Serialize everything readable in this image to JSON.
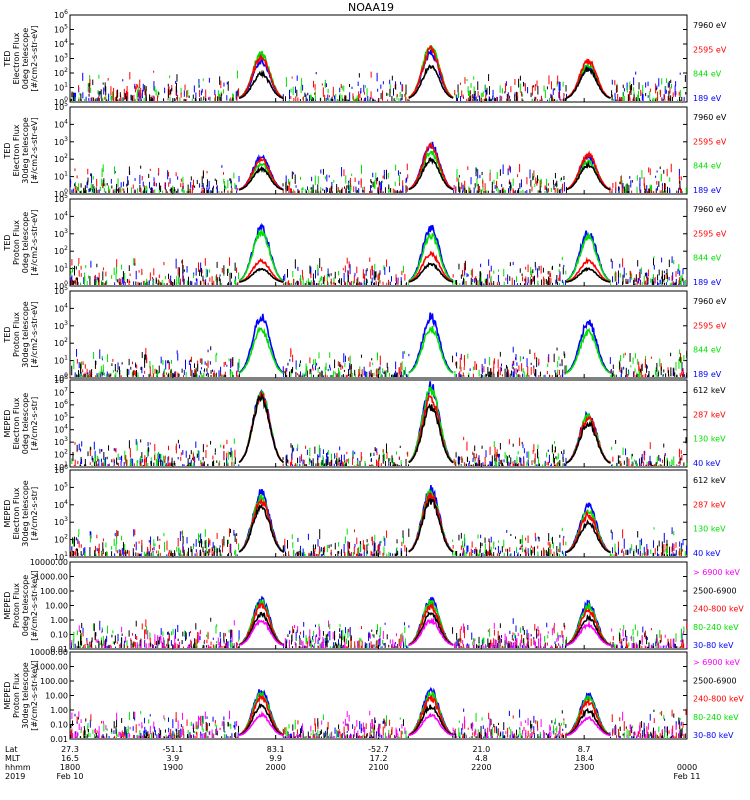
{
  "title": "NOAA19",
  "colors": {
    "black": "#000000",
    "red": "#ff0000",
    "green": "#00e000",
    "blue": "#0000ff",
    "magenta": "#ff00ff"
  },
  "chart_data": [
    {
      "type": "scatter",
      "ylabel": [
        "TED",
        "Electron Flux",
        "0deg telescope",
        "[#/cm2-s-str-eV]"
      ],
      "yscale": "log",
      "ylim": [
        1,
        1000000
      ],
      "yticks": [
        "10^0",
        "10^1",
        "10^2",
        "10^3",
        "10^4",
        "10^5",
        "10^6"
      ],
      "legend": [
        {
          "name": "7960 eV",
          "color": "black"
        },
        {
          "name": "2595 eV",
          "color": "red"
        },
        {
          "name": "844 eV",
          "color": "green"
        },
        {
          "name": "189 eV",
          "color": "blue"
        }
      ],
      "passes": [
        {
          "center": 0.31,
          "peak": [
            100,
            1500,
            2500,
            800
          ]
        },
        {
          "center": 0.585,
          "peak": [
            300,
            5000,
            10000,
            3000
          ]
        },
        {
          "center": 0.84,
          "peak": [
            200,
            800,
            400,
            250
          ]
        }
      ]
    },
    {
      "type": "scatter",
      "ylabel": [
        "TED",
        "Electron Flux",
        "30deg telescope",
        "[#/cm2-s-str-eV]"
      ],
      "yscale": "log",
      "ylim": [
        1,
        100000
      ],
      "yticks": [
        "10^0",
        "10^1",
        "10^2",
        "10^3",
        "10^4",
        "10^5"
      ],
      "legend": [
        {
          "name": "7960 eV",
          "color": "black"
        },
        {
          "name": "2595 eV",
          "color": "red"
        },
        {
          "name": "844 eV",
          "color": "green"
        },
        {
          "name": "189 eV",
          "color": "blue"
        }
      ],
      "passes": [
        {
          "center": 0.31,
          "peak": [
            30,
            100,
            60,
            150
          ]
        },
        {
          "center": 0.585,
          "peak": [
            100,
            600,
            300,
            800
          ]
        },
        {
          "center": 0.84,
          "peak": [
            50,
            200,
            80,
            150
          ]
        }
      ]
    },
    {
      "type": "scatter",
      "ylabel": [
        "TED",
        "Proton Flux",
        "0deg telescope",
        "[#/cm2-s-str-eV]"
      ],
      "yscale": "log",
      "ylim": [
        1,
        100000
      ],
      "yticks": [
        "10^0",
        "10^1",
        "10^2",
        "10^3",
        "10^4",
        "10^5"
      ],
      "legend": [
        {
          "name": "7960 eV",
          "color": "black"
        },
        {
          "name": "2595 eV",
          "color": "red"
        },
        {
          "name": "844 eV",
          "color": "green"
        },
        {
          "name": "189 eV",
          "color": "blue"
        }
      ],
      "passes": [
        {
          "center": 0.31,
          "peak": [
            10,
            30,
            1500,
            2500
          ]
        },
        {
          "center": 0.585,
          "peak": [
            20,
            80,
            1000,
            2500
          ]
        },
        {
          "center": 0.84,
          "peak": [
            10,
            30,
            800,
            1500
          ]
        }
      ]
    },
    {
      "type": "scatter",
      "ylabel": [
        "TED",
        "Proton Flux",
        "30deg telescope",
        "[#/cm2-s-str-eV]"
      ],
      "yscale": "log",
      "ylim": [
        1,
        100000
      ],
      "yticks": [
        "10^0",
        "10^1",
        "10^2",
        "10^3",
        "10^4",
        "10^5"
      ],
      "legend": [
        {
          "name": "7960 eV",
          "color": "black"
        },
        {
          "name": "2595 eV",
          "color": "red"
        },
        {
          "name": "844 eV",
          "color": "green"
        },
        {
          "name": "189 eV",
          "color": "blue"
        }
      ],
      "passes": [
        {
          "center": 0.31,
          "peak": [
            0,
            0,
            700,
            4000
          ]
        },
        {
          "center": 0.585,
          "peak": [
            0,
            0,
            900,
            4000
          ]
        },
        {
          "center": 0.84,
          "peak": [
            0,
            0,
            500,
            2000
          ]
        }
      ]
    },
    {
      "type": "scatter",
      "ylabel": [
        "MEPED",
        "Electron Flux",
        "0deg telescope",
        "[#/cm2-s-str]"
      ],
      "yscale": "log",
      "ylim": [
        10,
        100000000
      ],
      "yticks": [
        "10^1",
        "10^2",
        "10^3",
        "10^4",
        "10^5",
        "10^6",
        "10^7",
        "10^8"
      ],
      "legend": [
        {
          "name": "612 keV",
          "color": "black"
        },
        {
          "name": "287 keV",
          "color": "red"
        },
        {
          "name": "130 keV",
          "color": "green"
        },
        {
          "name": "40 keV",
          "color": "blue"
        }
      ],
      "passes": [
        {
          "center": 0.31,
          "peak": [
            5000000,
            7000000,
            8000000,
            9000000
          ]
        },
        {
          "center": 0.585,
          "peak": [
            1000000,
            5000000,
            30000000,
            50000000
          ]
        },
        {
          "center": 0.84,
          "peak": [
            40000,
            100000,
            150000,
            200000
          ]
        }
      ]
    },
    {
      "type": "scatter",
      "ylabel": [
        "MEPED",
        "Electron Flux",
        "30deg telescope",
        "[#/cm2-s-str]"
      ],
      "yscale": "log",
      "ylim": [
        10,
        1000000
      ],
      "yticks": [
        "10^1",
        "10^2",
        "10^3",
        "10^4",
        "10^5",
        "10^6"
      ],
      "legend": [
        {
          "name": "612 keV",
          "color": "black"
        },
        {
          "name": "287 keV",
          "color": "red"
        },
        {
          "name": "130 keV",
          "color": "green"
        },
        {
          "name": "40 keV",
          "color": "blue"
        }
      ],
      "passes": [
        {
          "center": 0.31,
          "peak": [
            10000,
            20000,
            30000,
            60000
          ]
        },
        {
          "center": 0.585,
          "peak": [
            20000,
            40000,
            60000,
            100000
          ]
        },
        {
          "center": 0.84,
          "peak": [
            1000,
            3000,
            5000,
            10000
          ]
        }
      ]
    },
    {
      "type": "scatter",
      "ylabel": [
        "MEPED",
        "Proton Flux",
        "0deg telescope",
        "[#/cm2-s-str-keV]"
      ],
      "yscale": "log",
      "ylim": [
        0.01,
        10000
      ],
      "yticks": [
        "0.01",
        "0.10",
        "1.00",
        "10.00",
        "100.00",
        "1000.00",
        "10000.00"
      ],
      "legend": [
        {
          "name": "> 6900 keV",
          "color": "magenta"
        },
        {
          "name": "2500-6900",
          "color": "black"
        },
        {
          "name": "240-800 keV",
          "color": "red"
        },
        {
          "name": "80-240 keV",
          "color": "green"
        },
        {
          "name": "30-80 keV",
          "color": "blue"
        }
      ],
      "passes": [
        {
          "center": 0.31,
          "peak": [
            1,
            3,
            10,
            20,
            30
          ]
        },
        {
          "center": 0.585,
          "peak": [
            1,
            3,
            10,
            20,
            30
          ]
        },
        {
          "center": 0.84,
          "peak": [
            0.5,
            1.5,
            5,
            10,
            15
          ]
        }
      ]
    },
    {
      "type": "scatter",
      "ylabel": [
        "MEPED",
        "Proton Flux",
        "30deg telescope",
        "[#/cm2-s-str-keV]"
      ],
      "yscale": "log",
      "ylim": [
        0.01,
        10000
      ],
      "yticks": [
        "0.01",
        "0.10",
        "1.00",
        "10.00",
        "100.00",
        "1000.00",
        "10000.00"
      ],
      "legend": [
        {
          "name": "> 6900 keV",
          "color": "magenta"
        },
        {
          "name": "2500-6900",
          "color": "black"
        },
        {
          "name": "240-800 keV",
          "color": "red"
        },
        {
          "name": "80-240 keV",
          "color": "green"
        },
        {
          "name": "30-80 keV",
          "color": "blue"
        }
      ],
      "passes": [
        {
          "center": 0.31,
          "peak": [
            0.5,
            2,
            8,
            15,
            25
          ]
        },
        {
          "center": 0.585,
          "peak": [
            0.5,
            2,
            8,
            15,
            25
          ]
        },
        {
          "center": 0.84,
          "peak": [
            0.3,
            1,
            4,
            8,
            12
          ]
        }
      ]
    }
  ],
  "xaxis": {
    "rows": [
      "Lat",
      "MLT",
      "hhmm",
      "2019"
    ],
    "ticks": [
      {
        "pos": 0.0,
        "lat": "27.3",
        "mlt": "16.5",
        "hhmm": "1800",
        "date": "Feb 10"
      },
      {
        "pos": 0.1667,
        "lat": "-51.1",
        "mlt": "3.9",
        "hhmm": "1900",
        "date": ""
      },
      {
        "pos": 0.3333,
        "lat": "83.1",
        "mlt": "9.9",
        "hhmm": "2000",
        "date": ""
      },
      {
        "pos": 0.5,
        "lat": "-52.7",
        "mlt": "17.2",
        "hhmm": "2100",
        "date": ""
      },
      {
        "pos": 0.6667,
        "lat": "21.0",
        "mlt": "4.8",
        "hhmm": "2200",
        "date": ""
      },
      {
        "pos": 0.8333,
        "lat": "8.7",
        "mlt": "18.4",
        "hhmm": "2300",
        "date": ""
      },
      {
        "pos": 1.0,
        "lat": "",
        "mlt": "",
        "hhmm": "0000",
        "date": "Feb 11"
      }
    ]
  }
}
